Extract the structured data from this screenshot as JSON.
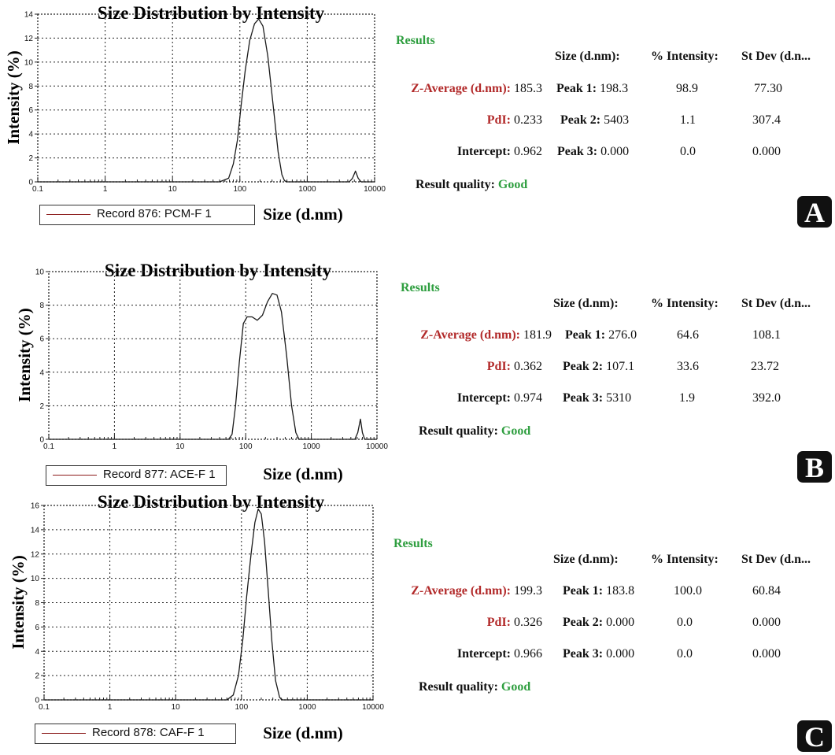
{
  "chart_data": [
    {
      "type": "line",
      "panel": "A",
      "title": "Size Distribution by Intensity",
      "xlabel": "Size (d.nm)",
      "ylabel": "Intensity (%)",
      "xscale": "log",
      "xlim": [
        0.1,
        10000
      ],
      "ylim": [
        0,
        14
      ],
      "yticks": [
        0,
        2,
        4,
        6,
        8,
        10,
        12,
        14
      ],
      "xticks": [
        "0.1",
        "1",
        "10",
        "100",
        "1000",
        "10000"
      ],
      "grid": true,
      "legend": "bottom-left",
      "series": [
        {
          "name": "Record 876: PCM-F 1",
          "color": "#8b1a1a",
          "x": [
            0.1,
            50,
            68,
            80,
            92,
            105,
            120,
            140,
            165,
            190,
            220,
            260,
            310,
            370,
            420,
            460,
            500,
            4200,
            4700,
            5200,
            5700,
            6300,
            10000
          ],
          "y": [
            0,
            0,
            0.3,
            1.5,
            3.5,
            6.5,
            9.3,
            11.8,
            13.2,
            13.6,
            13.0,
            10.5,
            6.5,
            2.5,
            0.6,
            0.1,
            0,
            0,
            0.3,
            0.9,
            0.3,
            0,
            0
          ]
        }
      ]
    },
    {
      "type": "line",
      "panel": "B",
      "title": "Size Distribution by Intensity",
      "xlabel": "Size (d.nm)",
      "ylabel": "Intensity (%)",
      "xscale": "log",
      "xlim": [
        0.1,
        10000
      ],
      "ylim": [
        0,
        10
      ],
      "yticks": [
        0,
        2,
        4,
        6,
        8,
        10
      ],
      "xticks": [
        "0.1",
        "1",
        "10",
        "100",
        "1000",
        "10000"
      ],
      "grid": true,
      "legend": "bottom-left",
      "series": [
        {
          "name": "Record 877: ACE-F 1",
          "color": "#8b1a1a",
          "x": [
            0.1,
            55,
            62,
            70,
            80,
            92,
            105,
            125,
            150,
            180,
            215,
            255,
            300,
            350,
            420,
            500,
            580,
            650,
            4600,
            5100,
            5600,
            6000,
            6500,
            10000
          ],
          "y": [
            0,
            0,
            0.3,
            2.0,
            4.6,
            6.9,
            7.3,
            7.3,
            7.1,
            7.4,
            8.2,
            8.7,
            8.6,
            7.6,
            5.0,
            2.0,
            0.4,
            0,
            0,
            0.4,
            1.2,
            0.4,
            0,
            0
          ]
        }
      ]
    },
    {
      "type": "line",
      "panel": "C",
      "title": "Size Distribution by Intensity",
      "xlabel": "Size (d.nm)",
      "ylabel": "Intensity (%)",
      "xscale": "log",
      "xlim": [
        0.1,
        10000
      ],
      "ylim": [
        0,
        16
      ],
      "yticks": [
        0,
        2,
        4,
        6,
        8,
        10,
        12,
        14,
        16
      ],
      "xticks": [
        "0.1",
        "1",
        "10",
        "100",
        "1000",
        "10000"
      ],
      "grid": true,
      "legend": "bottom-left",
      "series": [
        {
          "name": "Record 878: CAF-F 1",
          "color": "#8b1a1a",
          "x": [
            0.1,
            60,
            75,
            90,
            105,
            120,
            140,
            160,
            180,
            200,
            225,
            255,
            290,
            330,
            380,
            420,
            10000
          ],
          "y": [
            0,
            0,
            0.4,
            2.0,
            5.0,
            8.5,
            12.0,
            14.6,
            15.7,
            15.3,
            13.0,
            9.0,
            4.8,
            1.6,
            0.2,
            0,
            0
          ]
        }
      ]
    }
  ],
  "panels": [
    {
      "badge": "A",
      "results": {
        "heading": "Results",
        "col_size": "Size (d.nm):",
        "col_intensity": "% Intensity:",
        "col_stdev": "St Dev (d.n...",
        "z_label": "Z-Average (d.nm):",
        "z_value": "185.3",
        "pdi_label": "PdI:",
        "pdi_value": "0.233",
        "intercept_label": "Intercept:",
        "intercept_value": "0.962",
        "quality_label": "Result quality:",
        "quality_value": "Good",
        "peaks": [
          {
            "label": "Peak 1:",
            "size": "198.3",
            "intensity": "98.9",
            "stdev": "77.30"
          },
          {
            "label": "Peak 2:",
            "size": "5403",
            "intensity": "1.1",
            "stdev": "307.4"
          },
          {
            "label": "Peak 3:",
            "size": "0.000",
            "intensity": "0.0",
            "stdev": "0.000"
          }
        ]
      }
    },
    {
      "badge": "B",
      "results": {
        "heading": "Results",
        "col_size": "Size (d.nm):",
        "col_intensity": "% Intensity:",
        "col_stdev": "St Dev (d.n...",
        "z_label": "Z-Average (d.nm):",
        "z_value": "181.9",
        "pdi_label": "PdI:",
        "pdi_value": "0.362",
        "intercept_label": "Intercept:",
        "intercept_value": "0.974",
        "quality_label": "Result quality:",
        "quality_value": "Good",
        "peaks": [
          {
            "label": "Peak 1:",
            "size": "276.0",
            "intensity": "64.6",
            "stdev": "108.1"
          },
          {
            "label": "Peak 2:",
            "size": "107.1",
            "intensity": "33.6",
            "stdev": "23.72"
          },
          {
            "label": "Peak 3:",
            "size": "5310",
            "intensity": "1.9",
            "stdev": "392.0"
          }
        ]
      }
    },
    {
      "badge": "C",
      "results": {
        "heading": "Results",
        "col_size": "Size (d.nm):",
        "col_intensity": "% Intensity:",
        "col_stdev": "St Dev (d.n...",
        "z_label": "Z-Average (d.nm):",
        "z_value": "199.3",
        "pdi_label": "PdI:",
        "pdi_value": "0.326",
        "intercept_label": "Intercept:",
        "intercept_value": "0.966",
        "quality_label": "Result quality:",
        "quality_value": "Good",
        "peaks": [
          {
            "label": "Peak 1:",
            "size": "183.8",
            "intensity": "100.0",
            "stdev": "60.84"
          },
          {
            "label": "Peak 2:",
            "size": "0.000",
            "intensity": "0.0",
            "stdev": "0.000"
          },
          {
            "label": "Peak 3:",
            "size": "0.000",
            "intensity": "0.0",
            "stdev": "0.000"
          }
        ]
      }
    }
  ]
}
